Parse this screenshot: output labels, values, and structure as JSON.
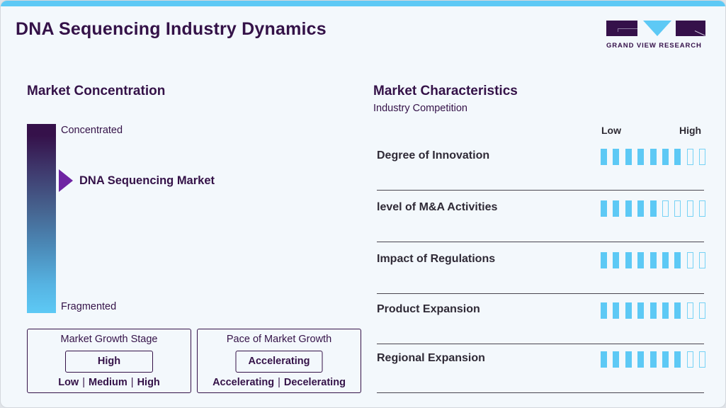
{
  "header": {
    "title": "DNA Sequencing Industry Dynamics",
    "logo_text": "GRAND VIEW RESEARCH"
  },
  "colors": {
    "brand_dark": "#35114a",
    "accent_blue": "#5dc9f5",
    "marker_purple": "#6f24a3",
    "background": "#f3f8fc"
  },
  "market_concentration": {
    "title": "Market Concentration",
    "top_label": "Concentrated",
    "bottom_label": "Fragmented",
    "marker_label": "DNA Sequencing Market"
  },
  "market_growth_stage": {
    "title": "Market Growth Stage",
    "value": "High",
    "options": [
      "Low",
      "Medium",
      "High"
    ]
  },
  "pace_of_market_growth": {
    "title": "Pace of Market Growth",
    "value": "Accelerating",
    "options": [
      "Accelerating",
      "Decelerating"
    ]
  },
  "market_characteristics": {
    "title": "Market Characteristics",
    "subtitle": "Industry Competition",
    "scale_low": "Low",
    "scale_high": "High",
    "max_rating": 9,
    "rows": [
      {
        "label": "Degree of Innovation",
        "rating": 7
      },
      {
        "label": "level of M&A Activities",
        "rating": 5
      },
      {
        "label": "Impact of Regulations",
        "rating": 7
      },
      {
        "label": "Product Expansion",
        "rating": 7
      },
      {
        "label": "Regional Expansion",
        "rating": 7
      }
    ]
  },
  "chart_data": {
    "type": "table",
    "title": "Market Characteristics - Industry Competition",
    "scale": {
      "min_label": "Low",
      "max_label": "High",
      "max": 9
    },
    "categories": [
      "Degree of Innovation",
      "level of M&A Activities",
      "Impact of Regulations",
      "Product Expansion",
      "Regional Expansion"
    ],
    "values": [
      7,
      5,
      7,
      7,
      7
    ]
  }
}
